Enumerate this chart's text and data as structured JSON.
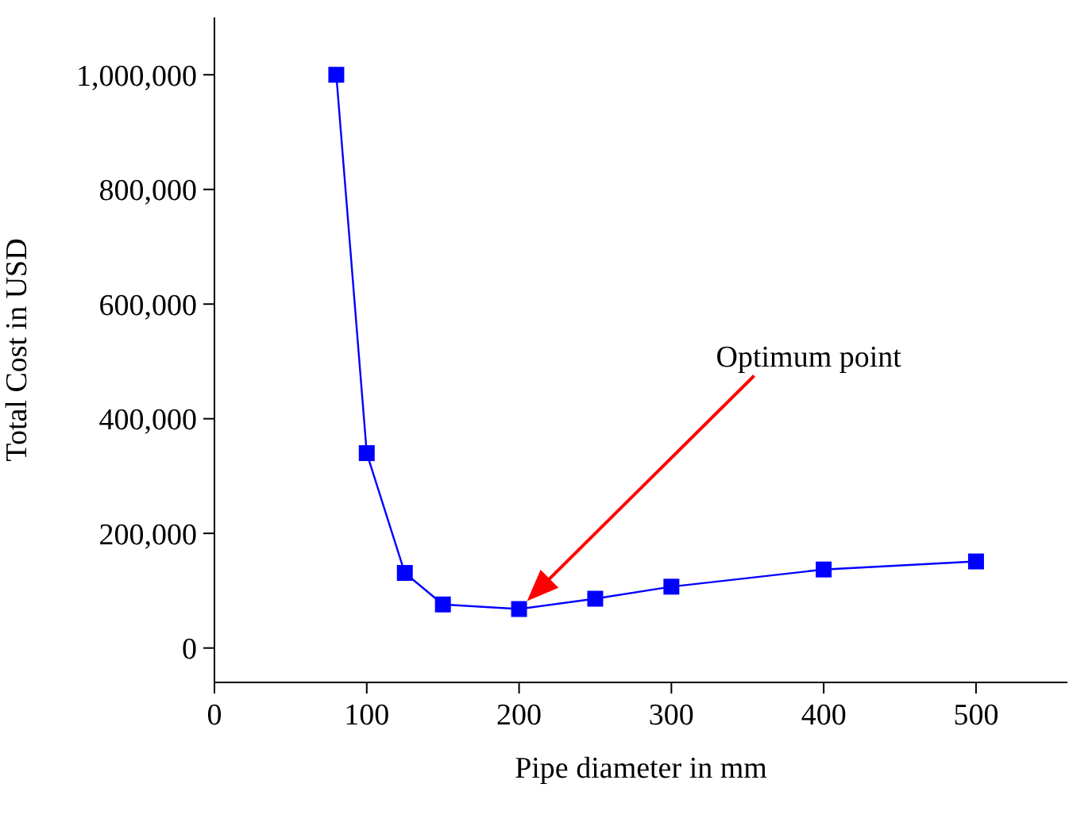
{
  "chart_data": {
    "type": "line",
    "xlabel": "Pipe diameter in mm",
    "ylabel": "Total  Cost in USD",
    "x": [
      80,
      100,
      125,
      150,
      200,
      250,
      300,
      400,
      500
    ],
    "series": [
      {
        "color": "#0000ff",
        "values": [
          1000000,
          340000,
          131000,
          76000,
          68000,
          86000,
          107000,
          137000,
          151000
        ]
      }
    ],
    "xlim": [
      0,
      560
    ],
    "xticks": [
      0,
      100,
      200,
      300,
      400,
      500
    ],
    "ylim": [
      -60000,
      1100000
    ],
    "yticks": [
      {
        "value": 0,
        "label": "0"
      },
      {
        "value": 200000,
        "label": "200,000"
      },
      {
        "value": 400000,
        "label": "400,000"
      },
      {
        "value": 600000,
        "label": "600,000"
      },
      {
        "value": 800000,
        "label": "800,000"
      },
      {
        "value": 1000000,
        "label": "1,000,000"
      }
    ],
    "marker": "square",
    "line_style": "solid",
    "grid": false,
    "legend": false,
    "annotations": [
      "Optimum point"
    ]
  }
}
